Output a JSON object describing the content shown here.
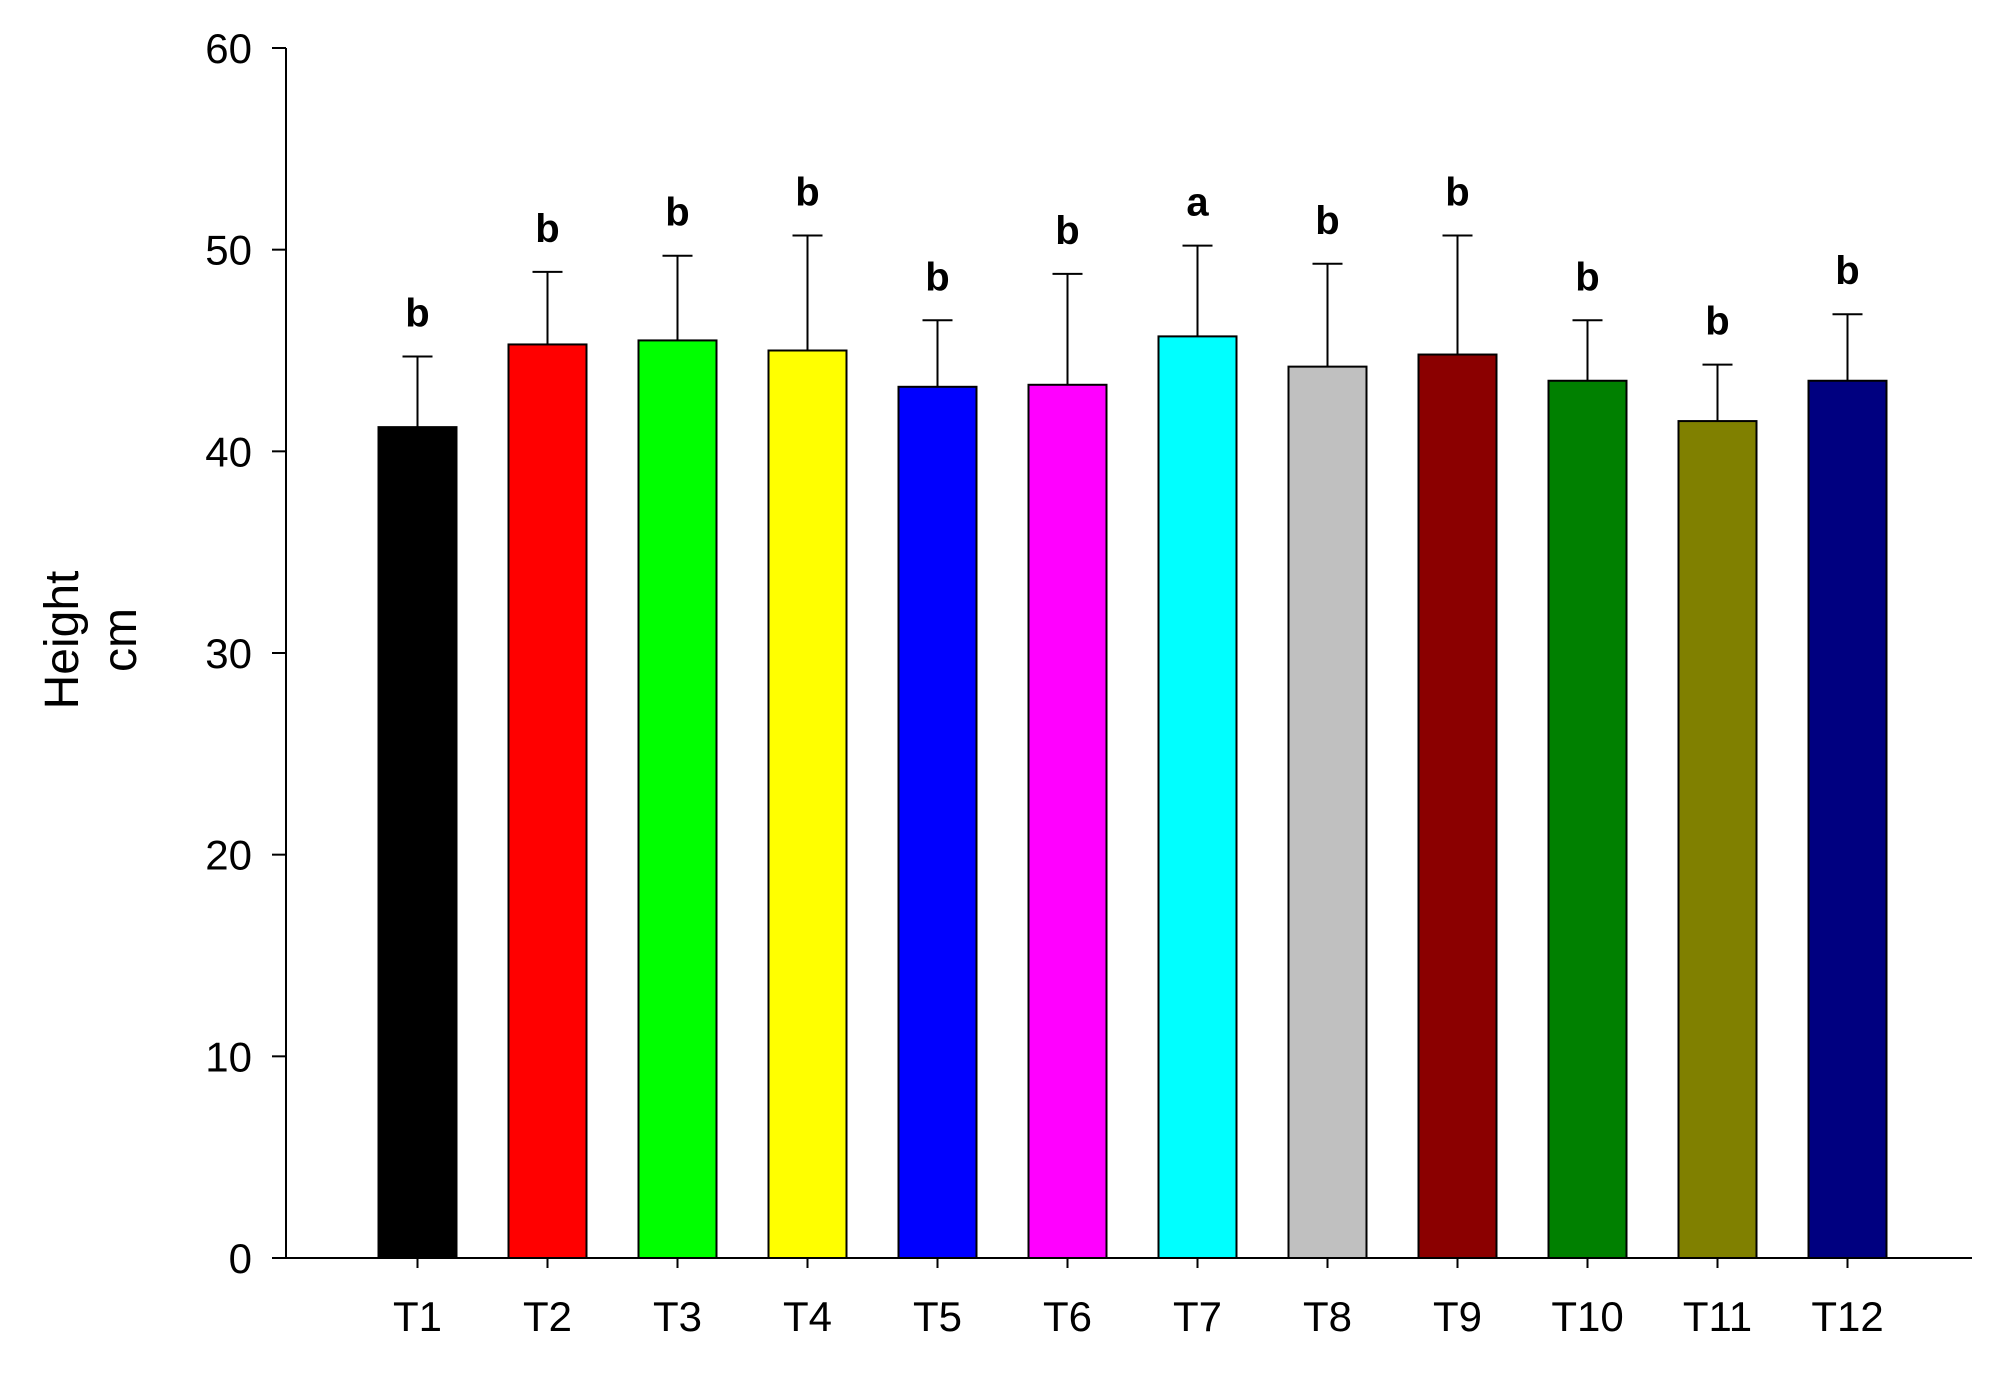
{
  "chart_data": {
    "type": "bar",
    "title": "",
    "xlabel": "",
    "ylabel_lines": [
      "Height",
      "cm"
    ],
    "categories": [
      "T1",
      "T2",
      "T3",
      "T4",
      "T5",
      "T6",
      "T7",
      "T8",
      "T9",
      "T10",
      "T11",
      "T12"
    ],
    "values": [
      41.2,
      45.3,
      45.5,
      45.0,
      43.2,
      43.3,
      45.7,
      44.2,
      44.8,
      43.5,
      41.5,
      43.5
    ],
    "error_upper": [
      44.7,
      48.9,
      49.7,
      50.7,
      46.5,
      48.8,
      50.2,
      49.3,
      50.7,
      46.5,
      44.3,
      46.8
    ],
    "significance": [
      "b",
      "b",
      "b",
      "b",
      "b",
      "b",
      "a",
      "b",
      "b",
      "b",
      "b",
      "b"
    ],
    "colors": [
      "#000000",
      "#ff0000",
      "#00ff00",
      "#ffff00",
      "#0000ff",
      "#ff00ff",
      "#00ffff",
      "#c0c0c0",
      "#8b0000",
      "#008000",
      "#808000",
      "#000080"
    ],
    "ylim": [
      0,
      60
    ],
    "yticks": [
      0,
      10,
      20,
      30,
      40,
      50,
      60
    ],
    "grid": false,
    "legend": "none"
  }
}
